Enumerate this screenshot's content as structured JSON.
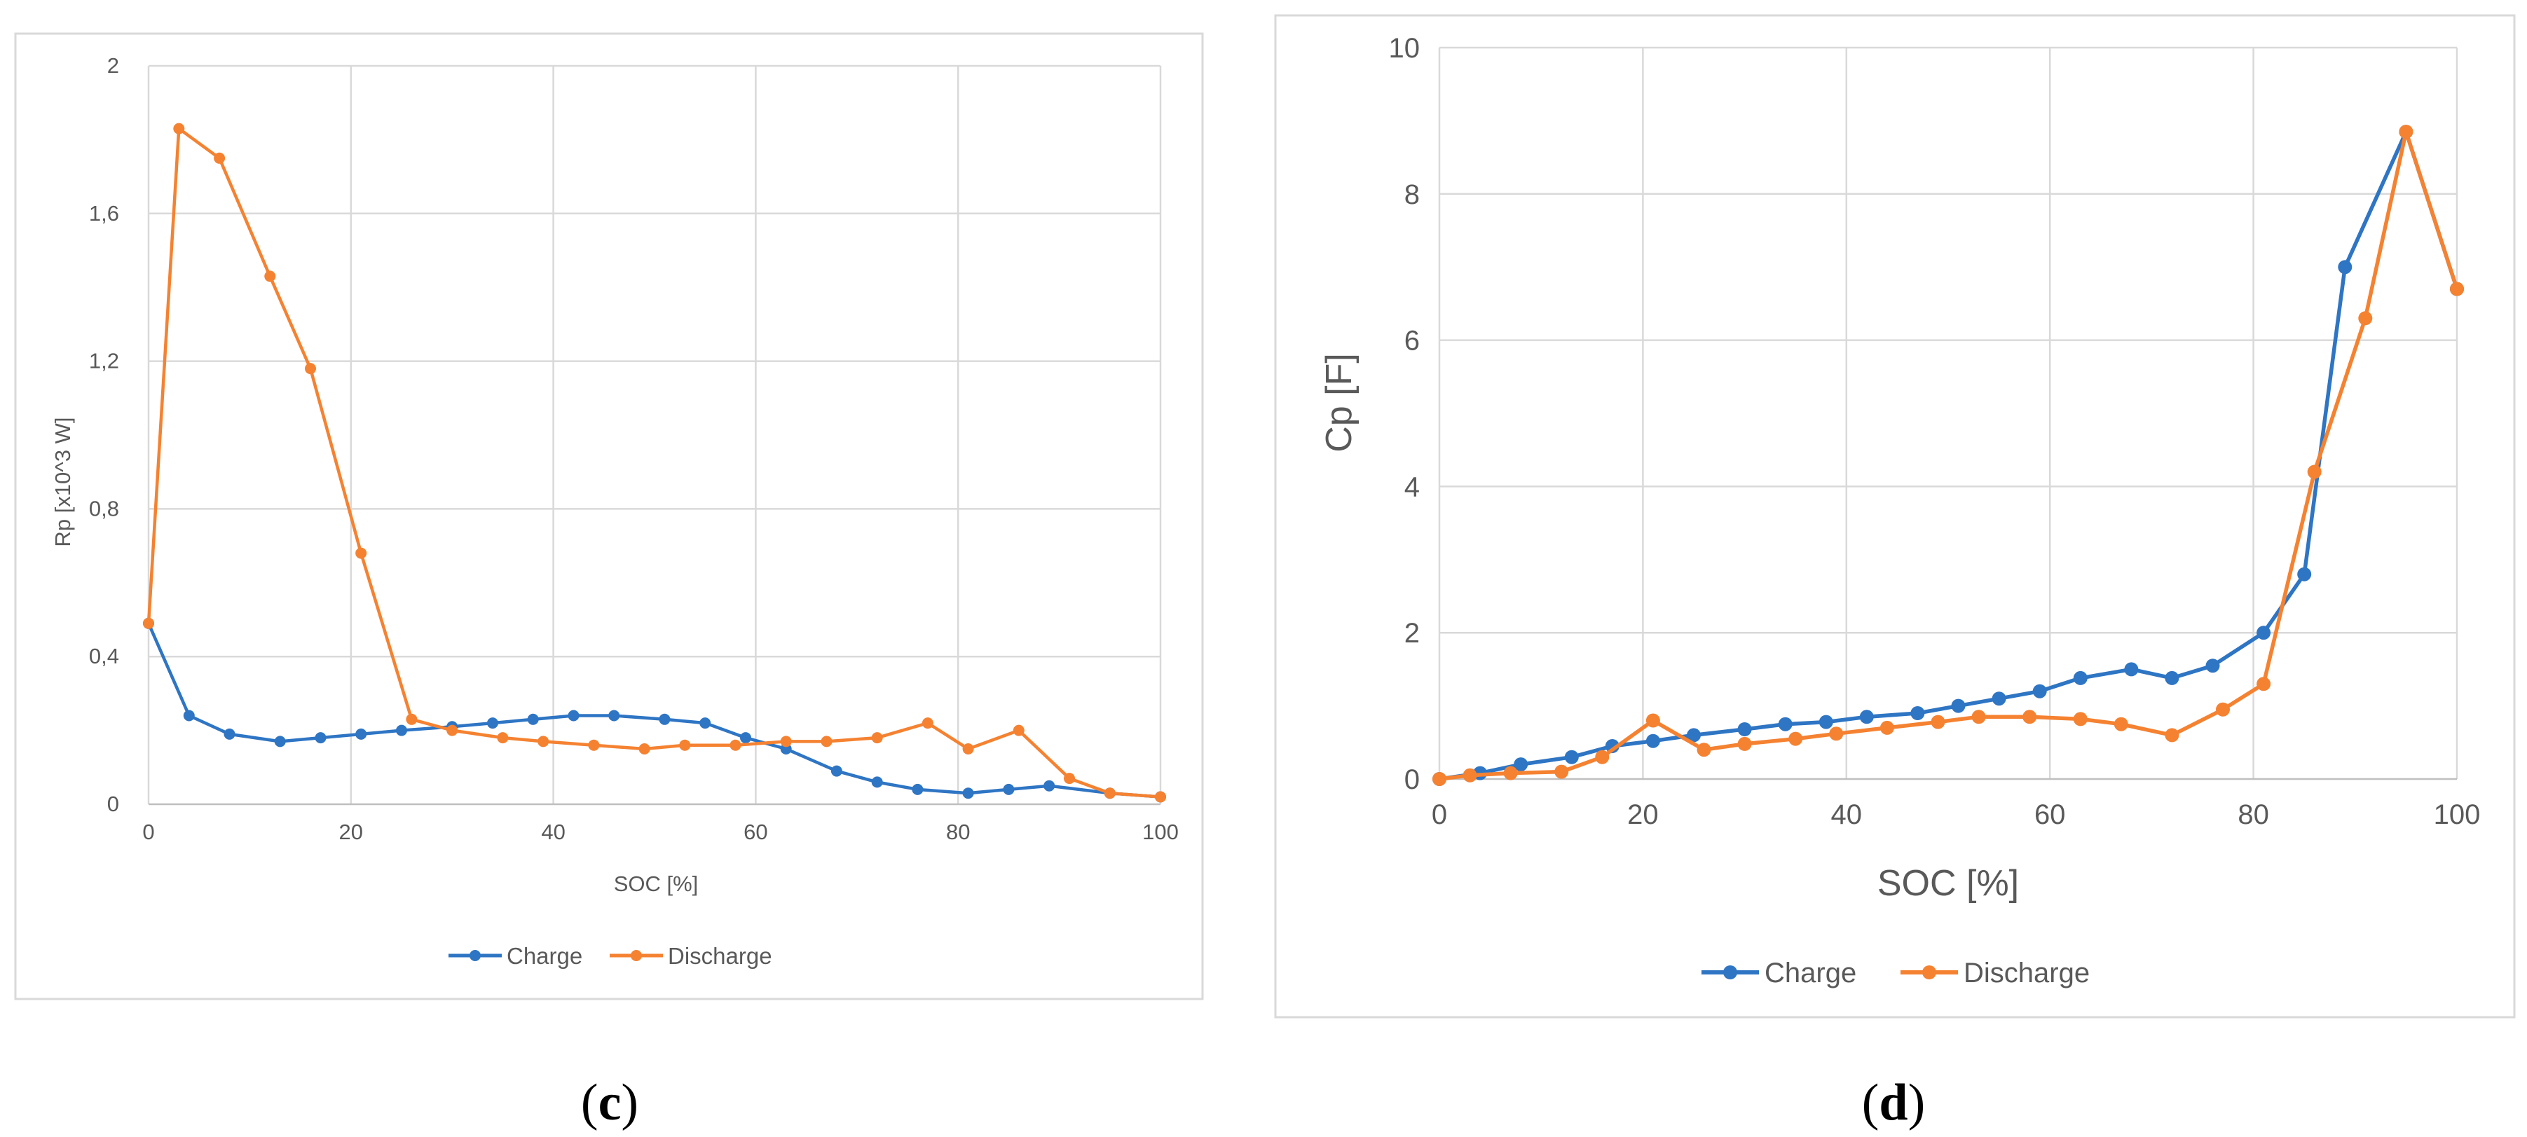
{
  "colors": {
    "charge": "#2e75c4",
    "discharge": "#f58231"
  },
  "panels": [
    {
      "open": "(",
      "letter": "c",
      "close": ")"
    },
    {
      "open": "(",
      "letter": "d",
      "close": ")"
    }
  ],
  "chart_data": [
    {
      "type": "line",
      "title": "",
      "xlabel": "SOC [%]",
      "ylabel": "Rp [x10^3 W]",
      "xlim": [
        0,
        100
      ],
      "ylim": [
        0,
        2
      ],
      "x_ticks": [
        "0",
        "20",
        "40",
        "60",
        "80",
        "100"
      ],
      "y_ticks": [
        "0",
        "0,4",
        "0,8",
        "1,2",
        "1,6",
        "2"
      ],
      "grid": true,
      "legend": "bottom-center",
      "series": [
        {
          "name": "Charge",
          "x": [
            0,
            4,
            8,
            13,
            17,
            21,
            25,
            30,
            34,
            38,
            42,
            46,
            51,
            55,
            59,
            63,
            68,
            72,
            76,
            81,
            85,
            89,
            95,
            100
          ],
          "y": [
            0.49,
            0.24,
            0.19,
            0.17,
            0.18,
            0.19,
            0.2,
            0.21,
            0.22,
            0.23,
            0.24,
            0.24,
            0.23,
            0.22,
            0.18,
            0.15,
            0.09,
            0.06,
            0.04,
            0.03,
            0.04,
            0.05,
            0.03,
            0.02
          ]
        },
        {
          "name": "Discharge",
          "x": [
            0,
            3,
            7,
            12,
            16,
            21,
            26,
            30,
            35,
            39,
            44,
            49,
            53,
            58,
            63,
            67,
            72,
            77,
            81,
            86,
            91,
            95,
            100
          ],
          "y": [
            0.49,
            1.83,
            1.75,
            1.43,
            1.18,
            0.68,
            0.23,
            0.2,
            0.18,
            0.17,
            0.16,
            0.15,
            0.16,
            0.16,
            0.17,
            0.17,
            0.18,
            0.22,
            0.15,
            0.2,
            0.07,
            0.03,
            0.02
          ]
        }
      ]
    },
    {
      "type": "line",
      "title": "",
      "xlabel": "SOC [%]",
      "ylabel": "Cp [F]",
      "xlim": [
        0,
        100
      ],
      "ylim": [
        0,
        10
      ],
      "x_ticks": [
        "0",
        "20",
        "40",
        "60",
        "80",
        "100"
      ],
      "y_ticks": [
        "0",
        "2",
        "4",
        "6",
        "8",
        "10"
      ],
      "grid": true,
      "legend": "bottom-center",
      "series": [
        {
          "name": "Charge",
          "x": [
            0,
            4,
            8,
            13,
            17,
            21,
            25,
            30,
            34,
            38,
            42,
            47,
            51,
            55,
            59,
            63,
            68,
            72,
            76,
            81,
            85,
            89,
            95,
            100
          ],
          "y": [
            0,
            0.08,
            0.2,
            0.3,
            0.45,
            0.52,
            0.6,
            0.68,
            0.75,
            0.78,
            0.85,
            0.9,
            1.0,
            1.1,
            1.2,
            1.38,
            1.5,
            1.38,
            1.55,
            2.0,
            2.8,
            7.0,
            8.85,
            6.7
          ]
        },
        {
          "name": "Discharge",
          "x": [
            0,
            3,
            7,
            12,
            16,
            21,
            26,
            30,
            35,
            39,
            44,
            49,
            53,
            58,
            63,
            67,
            72,
            77,
            81,
            86,
            91,
            95,
            100
          ],
          "y": [
            0,
            0.05,
            0.08,
            0.1,
            0.3,
            0.8,
            0.4,
            0.48,
            0.55,
            0.62,
            0.7,
            0.78,
            0.85,
            0.85,
            0.82,
            0.75,
            0.6,
            0.95,
            1.3,
            4.2,
            6.3,
            8.85,
            6.7
          ]
        }
      ]
    }
  ]
}
